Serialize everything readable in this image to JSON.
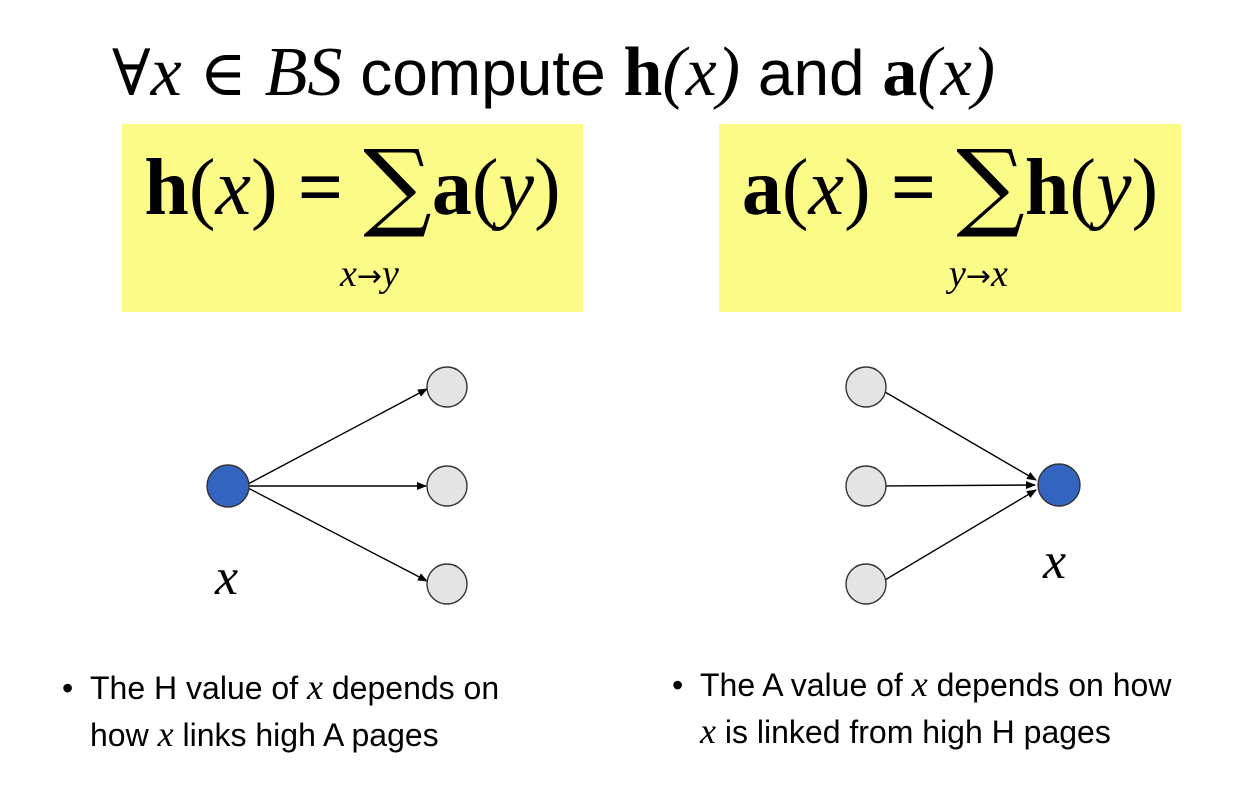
{
  "title": {
    "forall": "∀",
    "var_x": "x",
    "in": "∈",
    "set": "BS",
    "compute": " compute ",
    "h": "h",
    "h_arg": "(x)",
    "and": " and ",
    "a": "a",
    "a_arg": "(x)"
  },
  "formula_hub": {
    "lhs_fn": "h",
    "lhs_open": "(",
    "lhs_var": "x",
    "lhs_close": ")",
    "equals": " = ",
    "sigma": "∑",
    "rhs_fn": "a",
    "rhs_open": "(",
    "rhs_var": "y",
    "rhs_close": ")",
    "sub_from": "x",
    "sub_arrow": "→",
    "sub_to": "y",
    "highlight": "#fdfb87"
  },
  "formula_authority": {
    "lhs_fn": "a",
    "lhs_open": "(",
    "lhs_var": "x",
    "lhs_close": ")",
    "equals": " = ",
    "sigma": "∑",
    "rhs_fn": "h",
    "rhs_open": "(",
    "rhs_var": "y",
    "rhs_close": ")",
    "sub_from": "y",
    "sub_arrow": "→",
    "sub_to": "x",
    "highlight": "#fdfb87"
  },
  "diagram": {
    "node_x_color": "#3264c0",
    "node_other_color": "#e4e4e4",
    "stroke_color": "#333333",
    "left_label": "x",
    "right_label": "x"
  },
  "bullets": {
    "hub": {
      "dot": "•",
      "p1": "The H value of ",
      "x1": "x",
      "p2": " depends on",
      "p3": "how ",
      "x2": "x",
      "p4": " links high A pages"
    },
    "authority": {
      "dot": "•",
      "p1": "The A value of ",
      "x1": "x",
      "p2": " depends on how",
      "x2": "x",
      "p3": " is linked from high H pages"
    }
  }
}
